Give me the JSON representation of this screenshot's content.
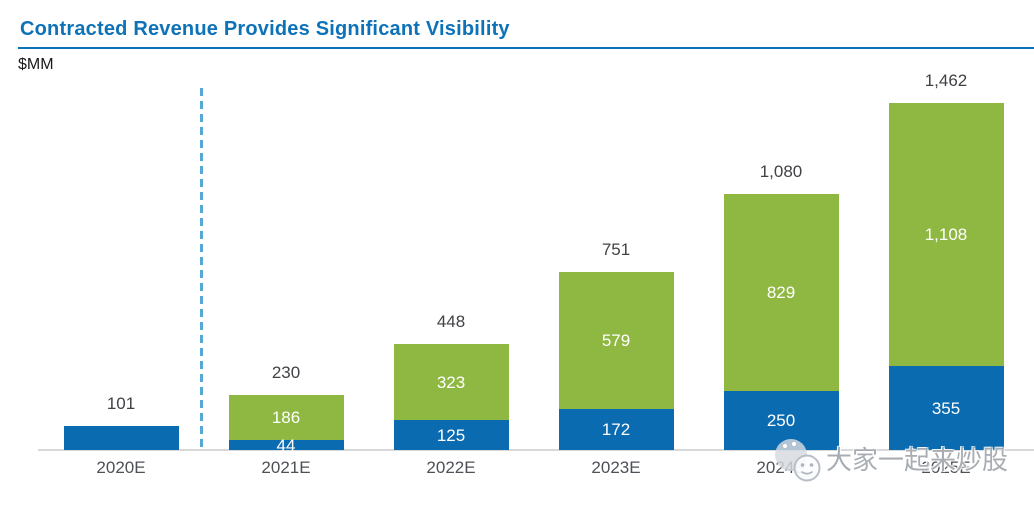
{
  "header": {
    "title": "Contracted Revenue Provides Significant Visibility",
    "unit_label": "$MM"
  },
  "colors": {
    "bar_blue": "#0B6BB0",
    "bar_green": "#8FB843",
    "title_blue": "#0E72B8",
    "dashed_divider": "#58A8D6",
    "axis_line": "#D9D9D9",
    "total_label": "#404245",
    "axis_label": "#4D5056",
    "watermark_gray": "#9EA4AB"
  },
  "chart_data": {
    "type": "bar",
    "stacked": true,
    "title": "Contracted Revenue Provides Significant Visibility",
    "unit": "$MM",
    "categories": [
      "2020E",
      "2021E",
      "2022E",
      "2023E",
      "2024E",
      "2025E"
    ],
    "series": [
      {
        "name": "contracted-blue",
        "color_key": "bar_blue",
        "values": [
          101,
          44,
          125,
          172,
          250,
          355
        ],
        "labels": [
          "",
          "44",
          "125",
          "172",
          "250",
          "355"
        ]
      },
      {
        "name": "incremental-green",
        "color_key": "bar_green",
        "values": [
          0,
          186,
          323,
          579,
          829,
          1108
        ],
        "labels": [
          "",
          "186",
          "323",
          "579",
          "829",
          "1,108"
        ]
      }
    ],
    "totals": [
      101,
      230,
      448,
      751,
      1080,
      1462
    ],
    "total_labels": [
      "101",
      "230",
      "448",
      "751",
      "1,080",
      "1,462"
    ],
    "ylim": [
      0,
      1550
    ],
    "gridlines": false,
    "legend": "none",
    "divider_after_category": "2020E"
  },
  "watermark": {
    "icon": "wechat-smiley-icon",
    "text": "大家一起来炒股"
  }
}
